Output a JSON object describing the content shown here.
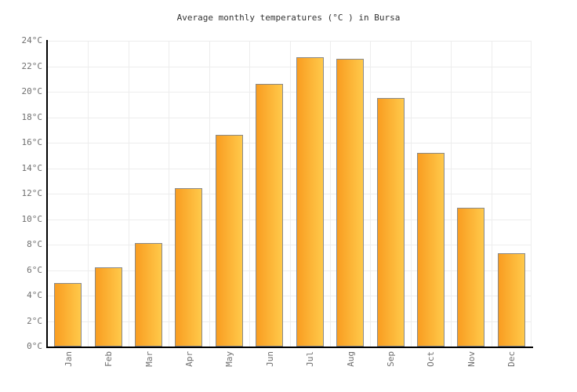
{
  "chart_data": {
    "type": "bar",
    "title": "Average monthly temperatures (°C ) in Bursa",
    "categories": [
      "Jan",
      "Feb",
      "Mar",
      "Apr",
      "May",
      "Jun",
      "Jul",
      "Aug",
      "Sep",
      "Oct",
      "Nov",
      "Dec"
    ],
    "values": [
      5.0,
      6.2,
      8.1,
      12.4,
      16.6,
      20.6,
      22.7,
      22.6,
      19.5,
      15.2,
      10.9,
      7.3
    ],
    "unit": "°C",
    "xlabel": "",
    "ylabel": "",
    "ylim": [
      0,
      24
    ],
    "ytick_step": 2,
    "ytick_labels": [
      "0°C",
      "2°C",
      "4°C",
      "6°C",
      "8°C",
      "10°C",
      "12°C",
      "14°C",
      "16°C",
      "18°C",
      "20°C",
      "22°C",
      "24°C"
    ],
    "grid": true,
    "legend": null,
    "colors": {
      "background": "#FFFFFF",
      "title": "#333333",
      "tick_label": "#707070",
      "axis": "#000000",
      "grid": "#EDEDED",
      "bar_gradient_left": "#F99D21",
      "bar_gradient_right": "#FFC94A",
      "bar_border": "#8A8A8A"
    }
  }
}
